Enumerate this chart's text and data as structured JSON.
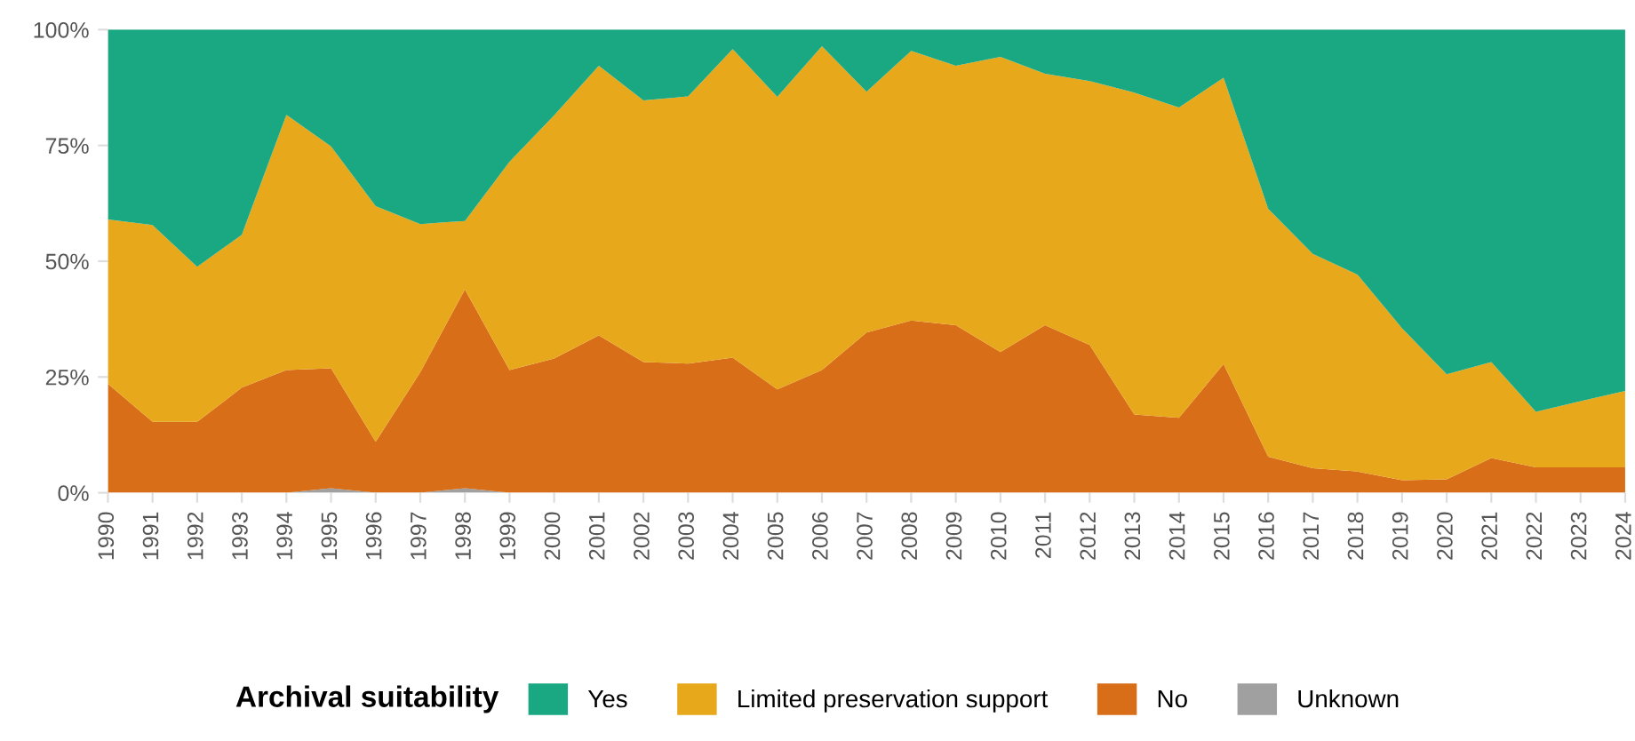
{
  "chart_data": {
    "type": "area",
    "stacked": true,
    "legend_title": "Archival suitability",
    "legend": "bottom",
    "grid": true,
    "x": [
      1990,
      1991,
      1992,
      1993,
      1994,
      1995,
      1996,
      1997,
      1998,
      1999,
      2000,
      2001,
      2002,
      2003,
      2004,
      2005,
      2006,
      2007,
      2008,
      2009,
      2010,
      2011,
      2012,
      2013,
      2014,
      2015,
      2016,
      2017,
      2018,
      2019,
      2020,
      2021,
      2022,
      2023,
      2024
    ],
    "xlim": [
      1990,
      2024
    ],
    "xticks": [
      1990,
      1991,
      1992,
      1993,
      1994,
      1995,
      1996,
      1997,
      1998,
      1999,
      2000,
      2001,
      2002,
      2003,
      2004,
      2005,
      2006,
      2007,
      2008,
      2009,
      2010,
      2011,
      2012,
      2013,
      2014,
      2015,
      2016,
      2017,
      2018,
      2019,
      2020,
      2021,
      2022,
      2023,
      2024
    ],
    "ylim": [
      0,
      100
    ],
    "yticks": [
      {
        "value": 0,
        "label": "0%"
      },
      {
        "value": 25,
        "label": "25%"
      },
      {
        "value": 50,
        "label": "50%"
      },
      {
        "value": 75,
        "label": "75%"
      },
      {
        "value": 100,
        "label": "100%"
      }
    ],
    "series": [
      {
        "name": "Unknown",
        "color": "#a0a0a0",
        "values": [
          0,
          0,
          0,
          0,
          0,
          1,
          0,
          0,
          1,
          0,
          0,
          0,
          0,
          0,
          0,
          0,
          0,
          0,
          0,
          0,
          0,
          0,
          0,
          0,
          0,
          0,
          0,
          0,
          0,
          0,
          0,
          0,
          0,
          0,
          0
        ]
      },
      {
        "name": "No",
        "color": "#d96e18",
        "values": [
          23.5,
          15.3,
          15.3,
          22.7,
          26.5,
          25.9,
          11,
          26,
          42.9,
          26.5,
          29,
          34,
          28.2,
          27.9,
          29.2,
          22.3,
          26.5,
          34.6,
          37.2,
          36.2,
          30.4,
          36.2,
          31.9,
          16.9,
          16.2,
          27.8,
          7.8,
          5.3,
          4.6,
          2.7,
          2.9,
          7.5,
          5.5,
          5.5,
          5.5
        ]
      },
      {
        "name": "Limited preservation support",
        "color": "#e8a81c",
        "values": [
          35.5,
          42.5,
          33.5,
          33,
          55.1,
          47.9,
          50.9,
          32,
          14.8,
          45,
          52.5,
          58.2,
          56.5,
          57.7,
          66.6,
          63.2,
          69.9,
          52,
          58.2,
          56,
          63.7,
          54.3,
          57,
          69.5,
          67,
          61.8,
          53.5,
          46.3,
          42.5,
          32.8,
          22.7,
          20.7,
          12,
          14.3,
          16.5
        ]
      },
      {
        "name": "Yes",
        "color": "#1aa883",
        "values": [
          41,
          42.2,
          51.2,
          44.3,
          18.4,
          25.2,
          38.1,
          42,
          41.3,
          28.5,
          18.5,
          7.8,
          15.3,
          14.4,
          4.2,
          14.5,
          3.6,
          13.4,
          4.6,
          7.8,
          5.9,
          9.5,
          11.1,
          13.6,
          16.8,
          10.4,
          38.7,
          48.4,
          52.9,
          64.5,
          74.4,
          71.8,
          82.5,
          80.2,
          78
        ]
      }
    ]
  }
}
